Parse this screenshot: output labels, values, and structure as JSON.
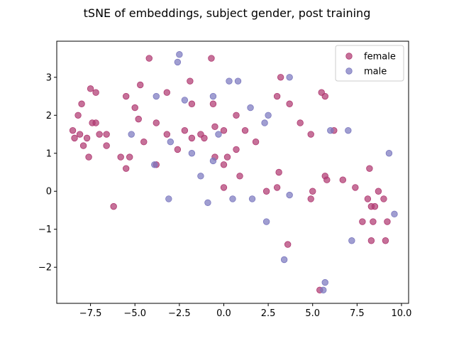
{
  "chart_data": {
    "type": "scatter",
    "title": "tSNE of embeddings, subject gender, post training",
    "xlabel": "",
    "ylabel": "",
    "xlim": [
      -9.4,
      10.4
    ],
    "ylim": [
      -2.95,
      3.95
    ],
    "xticks": [
      -7.5,
      -5.0,
      -2.5,
      0.0,
      2.5,
      5.0,
      7.5,
      10.0
    ],
    "xtick_labels": [
      "−7.5",
      "−5.0",
      "−2.5",
      "0.0",
      "2.5",
      "5.0",
      "7.5",
      "10.0"
    ],
    "yticks": [
      -2,
      -1,
      0,
      1,
      2,
      3
    ],
    "ytick_labels": [
      "−2",
      "−1",
      "0",
      "1",
      "2",
      "3"
    ],
    "grid": false,
    "legend_position": "top-right",
    "series": [
      {
        "name": "female",
        "color": "#b03a72",
        "points": [
          [
            -8.5,
            1.6
          ],
          [
            -8.4,
            1.4
          ],
          [
            -8.2,
            2.0
          ],
          [
            -8.1,
            1.5
          ],
          [
            -8.0,
            2.3
          ],
          [
            -7.9,
            1.2
          ],
          [
            -7.7,
            1.4
          ],
          [
            -7.6,
            0.9
          ],
          [
            -7.5,
            2.7
          ],
          [
            -7.4,
            1.8
          ],
          [
            -7.2,
            2.6
          ],
          [
            -7.2,
            1.8
          ],
          [
            -7.0,
            1.5
          ],
          [
            -6.6,
            1.5
          ],
          [
            -6.6,
            1.2
          ],
          [
            -6.2,
            -0.4
          ],
          [
            -5.8,
            0.9
          ],
          [
            -5.5,
            2.5
          ],
          [
            -5.5,
            0.6
          ],
          [
            -5.3,
            0.9
          ],
          [
            -5.0,
            2.2
          ],
          [
            -4.8,
            1.9
          ],
          [
            -4.7,
            2.8
          ],
          [
            -4.5,
            1.3
          ],
          [
            -4.2,
            3.5
          ],
          [
            -3.8,
            1.8
          ],
          [
            -3.8,
            0.7
          ],
          [
            -3.2,
            2.6
          ],
          [
            -3.2,
            1.5
          ],
          [
            -2.6,
            1.1
          ],
          [
            -2.2,
            1.6
          ],
          [
            -1.9,
            2.9
          ],
          [
            -1.8,
            2.3
          ],
          [
            -1.8,
            1.4
          ],
          [
            -1.3,
            1.5
          ],
          [
            -1.1,
            1.4
          ],
          [
            -0.7,
            3.5
          ],
          [
            -0.6,
            2.3
          ],
          [
            -0.5,
            1.7
          ],
          [
            -0.5,
            0.9
          ],
          [
            0.0,
            1.6
          ],
          [
            0.0,
            0.7
          ],
          [
            0.0,
            0.1
          ],
          [
            0.2,
            0.9
          ],
          [
            0.7,
            2.0
          ],
          [
            0.7,
            1.1
          ],
          [
            0.9,
            0.4
          ],
          [
            1.2,
            1.6
          ],
          [
            1.8,
            1.3
          ],
          [
            2.4,
            0.0
          ],
          [
            3.0,
            2.5
          ],
          [
            3.0,
            0.1
          ],
          [
            3.1,
            0.5
          ],
          [
            3.2,
            3.0
          ],
          [
            3.6,
            -1.4
          ],
          [
            3.7,
            2.3
          ],
          [
            4.3,
            1.8
          ],
          [
            4.9,
            1.5
          ],
          [
            4.9,
            -0.2
          ],
          [
            5.0,
            0.0
          ],
          [
            5.4,
            -2.6
          ],
          [
            5.5,
            2.6
          ],
          [
            5.7,
            2.5
          ],
          [
            5.7,
            0.4
          ],
          [
            5.8,
            0.3
          ],
          [
            6.2,
            1.6
          ],
          [
            6.7,
            0.3
          ],
          [
            7.4,
            0.1
          ],
          [
            7.8,
            -0.8
          ],
          [
            8.1,
            -0.2
          ],
          [
            8.2,
            0.6
          ],
          [
            8.3,
            -0.4
          ],
          [
            8.3,
            -1.3
          ],
          [
            8.4,
            -0.8
          ],
          [
            8.5,
            -0.4
          ],
          [
            8.7,
            0.0
          ],
          [
            9.0,
            -0.2
          ],
          [
            9.1,
            -1.3
          ],
          [
            9.2,
            -0.8
          ]
        ]
      },
      {
        "name": "male",
        "color": "#7b78bf",
        "points": [
          [
            -5.2,
            1.5
          ],
          [
            -3.9,
            0.7
          ],
          [
            -3.8,
            2.5
          ],
          [
            -3.1,
            -0.2
          ],
          [
            -3.0,
            1.3
          ],
          [
            -2.6,
            3.4
          ],
          [
            -2.5,
            3.6
          ],
          [
            -2.2,
            2.4
          ],
          [
            -1.8,
            1.0
          ],
          [
            -1.3,
            0.4
          ],
          [
            -0.9,
            -0.3
          ],
          [
            -0.6,
            2.5
          ],
          [
            -0.6,
            0.8
          ],
          [
            -0.3,
            1.5
          ],
          [
            0.3,
            2.9
          ],
          [
            0.5,
            -0.2
          ],
          [
            0.8,
            2.9
          ],
          [
            1.5,
            2.2
          ],
          [
            1.6,
            -0.2
          ],
          [
            2.3,
            1.8
          ],
          [
            2.4,
            -0.8
          ],
          [
            2.5,
            2.0
          ],
          [
            3.4,
            -1.8
          ],
          [
            3.7,
            3.0
          ],
          [
            3.7,
            -0.1
          ],
          [
            5.6,
            -2.6
          ],
          [
            5.7,
            -2.4
          ],
          [
            6.0,
            1.6
          ],
          [
            7.0,
            1.6
          ],
          [
            7.2,
            -1.3
          ],
          [
            9.3,
            1.0
          ],
          [
            9.6,
            -0.6
          ]
        ]
      }
    ]
  }
}
